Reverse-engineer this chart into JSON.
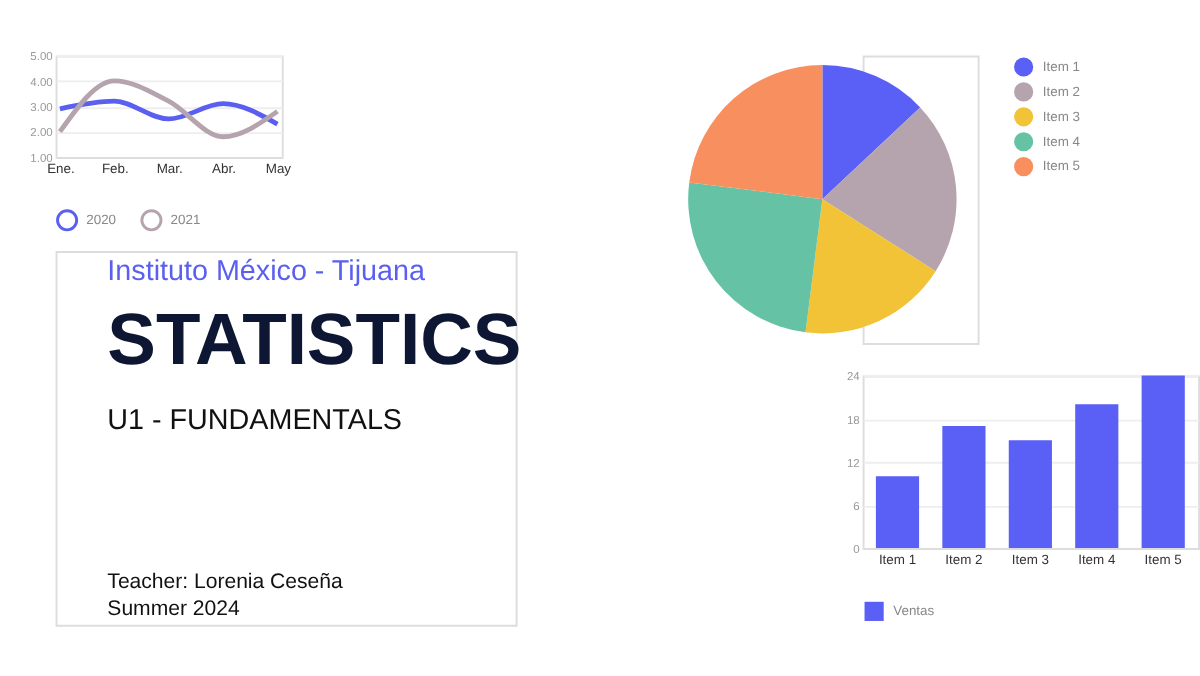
{
  "chart_data": [
    {
      "type": "line",
      "categories": [
        "Ene.",
        "Feb.",
        "Mar.",
        "Abr.",
        "May"
      ],
      "series": [
        {
          "name": "2020",
          "color": "#5a5ff0",
          "values": [
            2.9,
            3.2,
            2.5,
            3.1,
            2.3
          ]
        },
        {
          "name": "2021",
          "color": "#b5a4ad",
          "values": [
            2.0,
            4.0,
            3.2,
            1.8,
            2.8
          ]
        }
      ],
      "ylim": [
        1,
        5
      ],
      "yticks": [
        {
          "value": 1,
          "label": "1.00"
        },
        {
          "value": 2,
          "label": "2.00"
        },
        {
          "value": 3,
          "label": "3.00"
        },
        {
          "value": 4,
          "label": "4.00"
        },
        {
          "value": 5,
          "label": "5.00"
        }
      ],
      "grid": "y",
      "legend": "bottom",
      "marker": "none",
      "line_style": "solid"
    },
    {
      "type": "other",
      "title": "STATISTICS",
      "subtitle": "U1 - FUNDAMENTALS",
      "annotations": [
        "Instituto México - Tijuana",
        "Teacher: Lorenia Ceseña",
        "Summer 2024"
      ]
    },
    {
      "type": "pie",
      "categories": [
        "Item 1",
        "Item 2",
        "Item 3",
        "Item 4",
        "Item 5"
      ],
      "values": [
        13,
        21,
        18,
        25,
        23
      ],
      "colors": [
        "#5a5ff5",
        "#b5a4ad",
        "#f2c237",
        "#66c2a5",
        "#f78f5e"
      ],
      "legend": "right"
    },
    {
      "type": "bar",
      "categories": [
        "Item 1",
        "Item 2",
        "Item 3",
        "Item 4",
        "Item 5"
      ],
      "series": [
        {
          "name": "Ventas",
          "color": "#5a5ff5",
          "values": [
            10,
            17,
            15,
            20,
            24
          ]
        }
      ],
      "ylim": [
        0,
        24
      ],
      "yticks": [
        0,
        6,
        12,
        18,
        24
      ],
      "grid": "y",
      "legend": "bottom"
    }
  ]
}
